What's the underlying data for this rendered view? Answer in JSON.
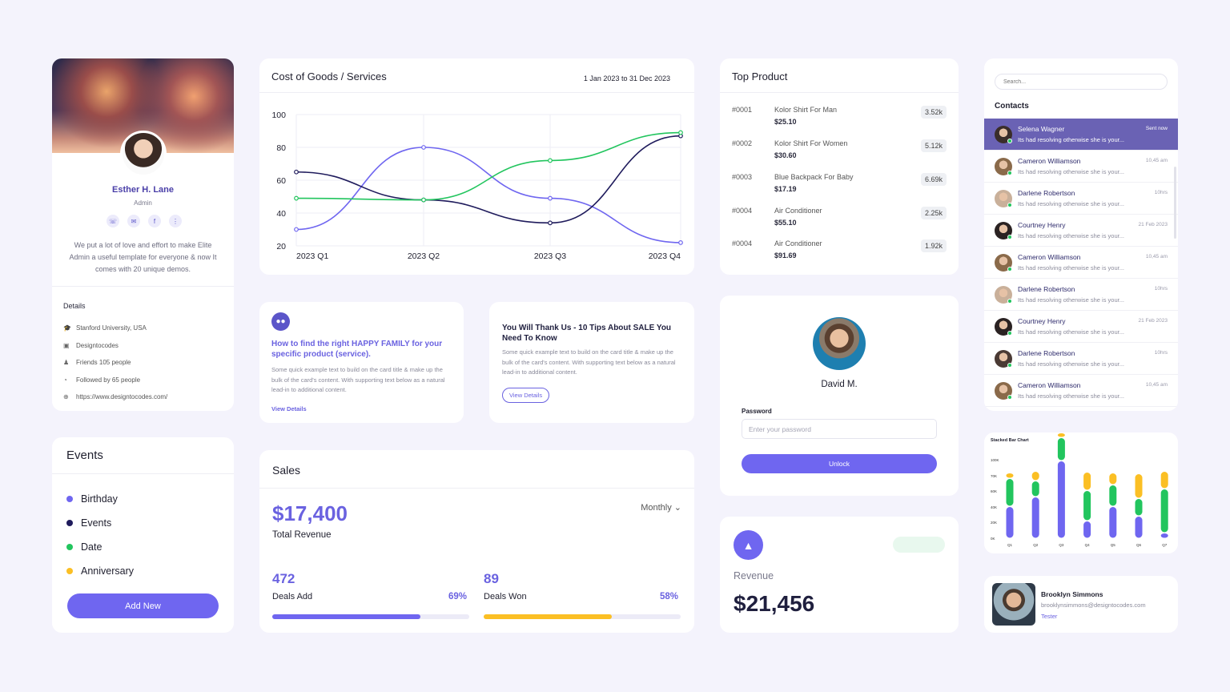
{
  "profile": {
    "name": "Esther H. Lane",
    "role": "Admin",
    "bio": "We put a lot of love and effort to make Elite Admin a useful template for everyone & now It comes with 20 unique demos.",
    "details_title": "Details",
    "details": [
      {
        "icon": "graduation-icon",
        "text": "Stanford University, USA"
      },
      {
        "icon": "briefcase-icon",
        "text": "Designtocodes"
      },
      {
        "icon": "users-icon",
        "text": "Friends  105 people"
      },
      {
        "icon": "rss-icon",
        "text": "Followed by 65 people"
      },
      {
        "icon": "globe-icon",
        "text": "https://www.designtocodes.com/"
      }
    ],
    "social_icons": [
      "phone-icon",
      "mail-icon",
      "facebook-icon",
      "more-icon"
    ]
  },
  "events": {
    "title": "Events",
    "items": [
      {
        "label": "Birthday",
        "color": "#6f66f0"
      },
      {
        "label": "Events",
        "color": "#1f1b5c"
      },
      {
        "label": "Date",
        "color": "#22c55e"
      },
      {
        "label": "Anniversary",
        "color": "#fbbf24"
      }
    ],
    "button": "Add New"
  },
  "cost_chart": {
    "title": "Cost of Goods / Services",
    "date_range": "1 Jan 2023 to 31 Dec 2023"
  },
  "chart_data": {
    "type": "line",
    "categories": [
      "2023 Q1",
      "2023 Q2",
      "2023 Q3",
      "2023 Q4"
    ],
    "ylim": [
      20,
      100
    ],
    "yticks": [
      20,
      40,
      60,
      80,
      100
    ],
    "grid": true,
    "series": [
      {
        "color": "#6f66f0",
        "values": [
          30,
          80,
          49,
          22
        ]
      },
      {
        "color": "#1f1b5c",
        "values": [
          65,
          48,
          34,
          87
        ]
      },
      {
        "color": "#22c55e",
        "values": [
          49,
          48,
          72,
          89
        ]
      }
    ]
  },
  "top_product": {
    "title": "Top Product",
    "items": [
      {
        "id": "#0001",
        "name": "Kolor Shirt For Man",
        "price": "$25.10",
        "count": "3.52k"
      },
      {
        "id": "#0002",
        "name": "Kolor Shirt For Women",
        "price": "$30.60",
        "count": "5.12k"
      },
      {
        "id": "#0003",
        "name": "Blue Backpack For Baby",
        "price": "$17.19",
        "count": "6.69k"
      },
      {
        "id": "#0004",
        "name": "Air Conditioner",
        "price": "$55.10",
        "count": "2.25k"
      },
      {
        "id": "#0004",
        "name": "Air Conditioner",
        "price": "$91.69",
        "count": "1.92k"
      }
    ]
  },
  "contacts": {
    "search_placeholder": "Search...",
    "title": "Contacts",
    "items": [
      {
        "name": "Selena Wagner",
        "message": "Its had resolving otherwise she is your...",
        "time": "Sent now",
        "active": true
      },
      {
        "name": "Cameron Williamson",
        "message": "Its had resolving otherwise she is your...",
        "time": "10,45 am"
      },
      {
        "name": "Darlene Robertson",
        "message": "Its had resolving otherwise she is your...",
        "time": "10hrs"
      },
      {
        "name": "Courtney Henry",
        "message": "Its had resolving otherwise she is your...",
        "time": "21 Feb 2023"
      },
      {
        "name": "Cameron Williamson",
        "message": "Its had resolving otherwise she is your...",
        "time": "10,45 am"
      },
      {
        "name": "Darlene Robertson",
        "message": "Its had resolving otherwise she is your...",
        "time": "10hrs"
      },
      {
        "name": "Courtney Henry",
        "message": "Its had resolving otherwise she is your...",
        "time": "21 Feb 2023"
      },
      {
        "name": "Darlene Robertson",
        "message": "Its had resolving otherwise she is your...",
        "time": "10hrs"
      },
      {
        "name": "Cameron Williamson",
        "message": "Its had resolving otherwise she is your...",
        "time": "10,45 am"
      }
    ]
  },
  "blog1": {
    "icon": "users-icon",
    "title": "How to find the right HAPPY FAMILY for your specific product (service).",
    "text": "Some quick example text to build on the card title & make up the bulk of the card's content. With supporting text below as a natural lead-in to additional content.",
    "link": "View Details"
  },
  "blog2": {
    "title": "You Will Thank Us - 10 Tips About SALE You Need To Know",
    "text": "Some quick example text to build on the card title & make up the bulk of the card's content. With supporting text below as a natural lead-in to additional content.",
    "button": "View Details"
  },
  "unlock": {
    "name": "David M.",
    "password_label": "Password",
    "password_placeholder": "Enter your password",
    "button": "Unlock"
  },
  "sales": {
    "title": "Sales",
    "amount": "$17,400",
    "amount_label": "Total Revenue",
    "period": "Monthly",
    "deals_add": {
      "value": "472",
      "label": "Deals Add",
      "percent": "69%",
      "progress": 0.75,
      "color": "#6f66f0"
    },
    "deals_won": {
      "value": "89",
      "label": "Deals Won",
      "percent": "58%",
      "progress": 0.65,
      "color": "#fbbf24"
    }
  },
  "revenue": {
    "label": "Revenue",
    "value": "$21,456",
    "icon": "area-chart-icon"
  },
  "stacked_chart": {
    "title": "Stacked Bar Chart",
    "categories": [
      "Q1",
      "Q2",
      "Q3",
      "Q4",
      "Q5",
      "Q6",
      "Q7"
    ],
    "yticks": [
      "0K",
      "20K",
      "40K",
      "60K",
      "70K",
      "100K"
    ],
    "colors": [
      "#6f66f0",
      "#22c55e",
      "#fbbf24"
    ],
    "series": [
      [
        40,
        52,
        97,
        22,
        40,
        28,
        7
      ],
      [
        35,
        20,
        29,
        38,
        27,
        22,
        55
      ],
      [
        7,
        12,
        6,
        23,
        15,
        31,
        22
      ]
    ]
  },
  "person": {
    "name": "Brooklyn Simmons",
    "email": "brooklynsimmons@designtocodes.com",
    "role": "Tester"
  }
}
